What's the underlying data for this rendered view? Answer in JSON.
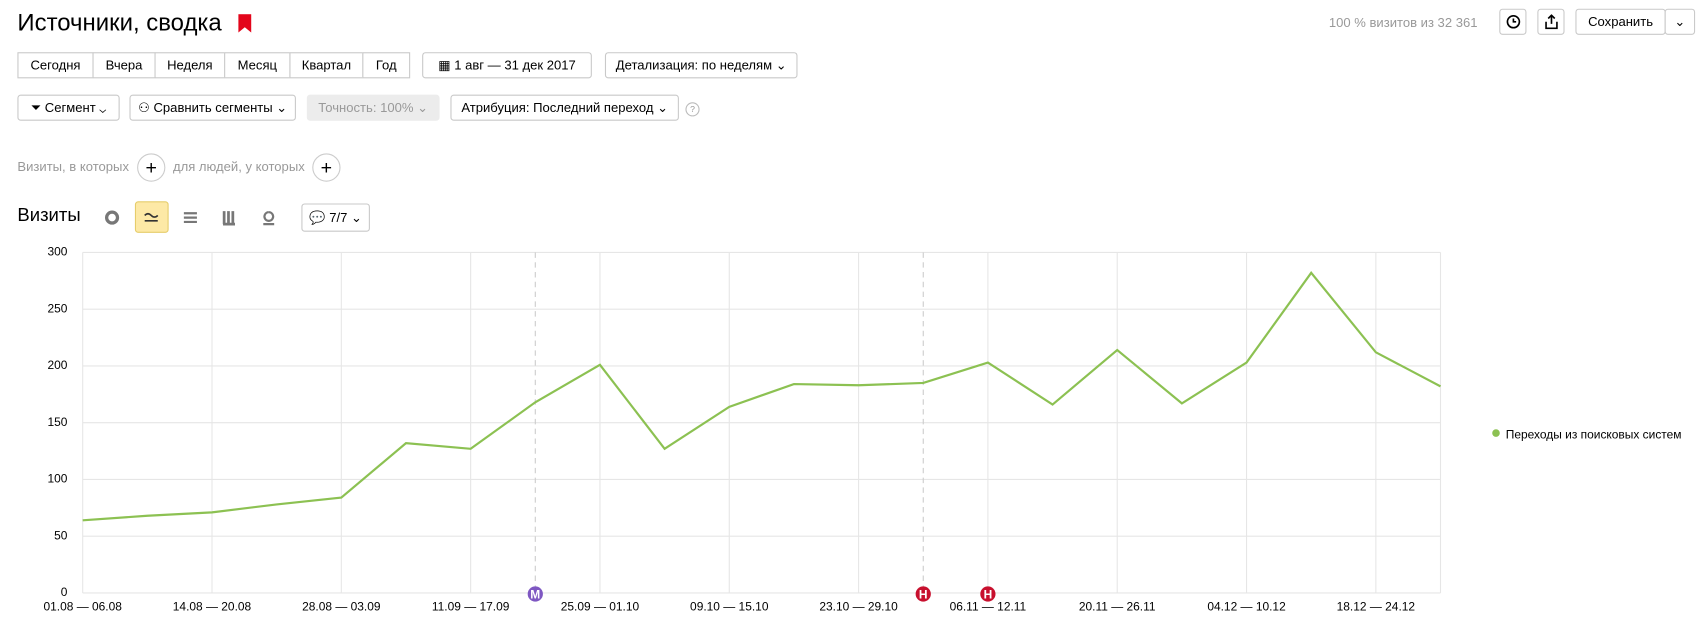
{
  "ui": {
    "title": "Источники, сводка",
    "summary": "100 % визитов из 32 361",
    "save": "Сохранить",
    "period_buttons": [
      "Сегодня",
      "Вчера",
      "Неделя",
      "Месяц",
      "Квартал",
      "Год"
    ],
    "date_range": "1 авг — 31 дек 2017",
    "detail": "Детализация: по неделям",
    "segment": "Сегмент",
    "compare": "Сравнить сегменты",
    "accuracy": "Точность: 100%",
    "attribution": "Атрибуция: Последний переход",
    "help": "?",
    "filter_visits": "Визиты, в которых",
    "filter_people": "для людей, у которых",
    "section": "Визиты",
    "comments": "7/7"
  },
  "chart_data": {
    "type": "line",
    "categories": [
      "01.08 — 06.08",
      null,
      "14.08 — 20.08",
      null,
      "28.08 — 03.09",
      null,
      "11.09 — 17.09",
      null,
      "25.09 — 01.10",
      null,
      "09.10 — 15.10",
      null,
      "23.10 — 29.10",
      null,
      "06.11 — 12.11",
      null,
      "20.11 — 26.11",
      null,
      "04.12 — 10.12",
      null,
      "18.12 — 24.12",
      null
    ],
    "series": [
      {
        "name": "Переходы из поисковых систем",
        "color": "#8cc152",
        "values": [
          64,
          68,
          71,
          78,
          84,
          132,
          127,
          168,
          201,
          127,
          164,
          184,
          183,
          185,
          203,
          166,
          214,
          167,
          203,
          282,
          212,
          182
        ]
      }
    ],
    "ylim": [
      0,
      300
    ],
    "yticks": [
      0,
      50,
      100,
      150,
      200,
      250,
      300
    ],
    "grid": true,
    "annotations": [
      {
        "label": "M",
        "color": "#7e57c2"
      },
      {
        "label": "H",
        "color": "#c8102e"
      },
      {
        "label": "H",
        "color": "#c8102e"
      }
    ]
  }
}
